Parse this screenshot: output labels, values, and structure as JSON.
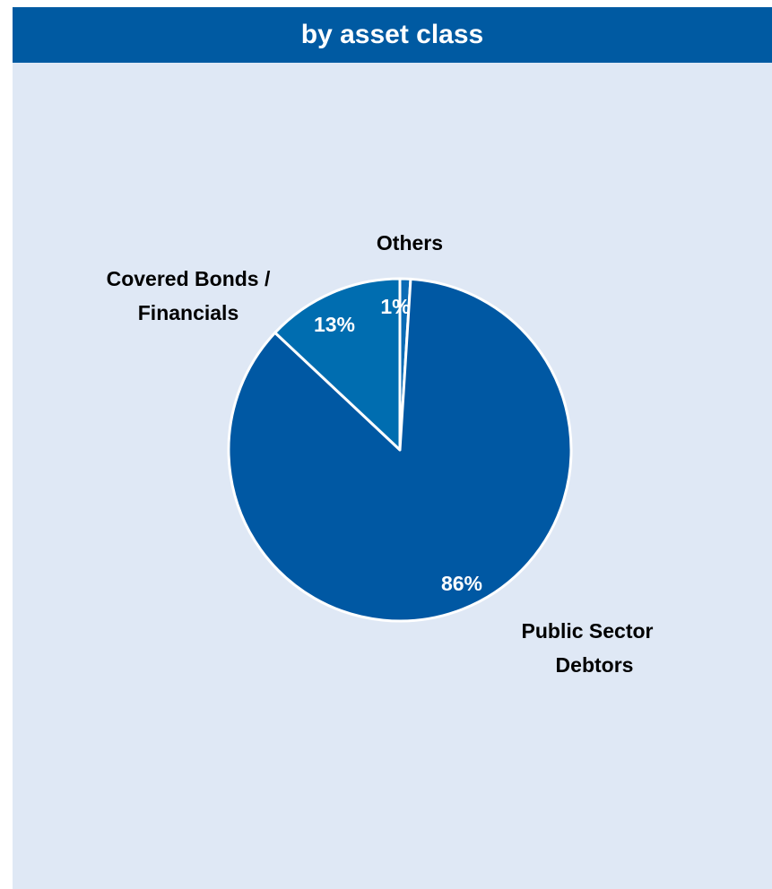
{
  "header": {
    "title": "by asset class"
  },
  "colors": {
    "header_bg": "#005aa2",
    "panel_bg": "#dfe8f5",
    "slice_border": "#ffffff"
  },
  "chart_data": {
    "type": "pie",
    "title": "by asset class",
    "slices": [
      {
        "label": "Others",
        "label_lines": [
          "Others"
        ],
        "value": 1,
        "value_label": "1%",
        "color": "#0a6bb5"
      },
      {
        "label": "Public Sector Debtors",
        "label_lines": [
          "Public Sector",
          "Debtors"
        ],
        "value": 86,
        "value_label": "86%",
        "color": "#0058a3"
      },
      {
        "label": "Covered Bonds / Financials",
        "label_lines": [
          "Covered Bonds /",
          "Financials"
        ],
        "value": 13,
        "value_label": "13%",
        "color": "#006db0"
      }
    ]
  }
}
